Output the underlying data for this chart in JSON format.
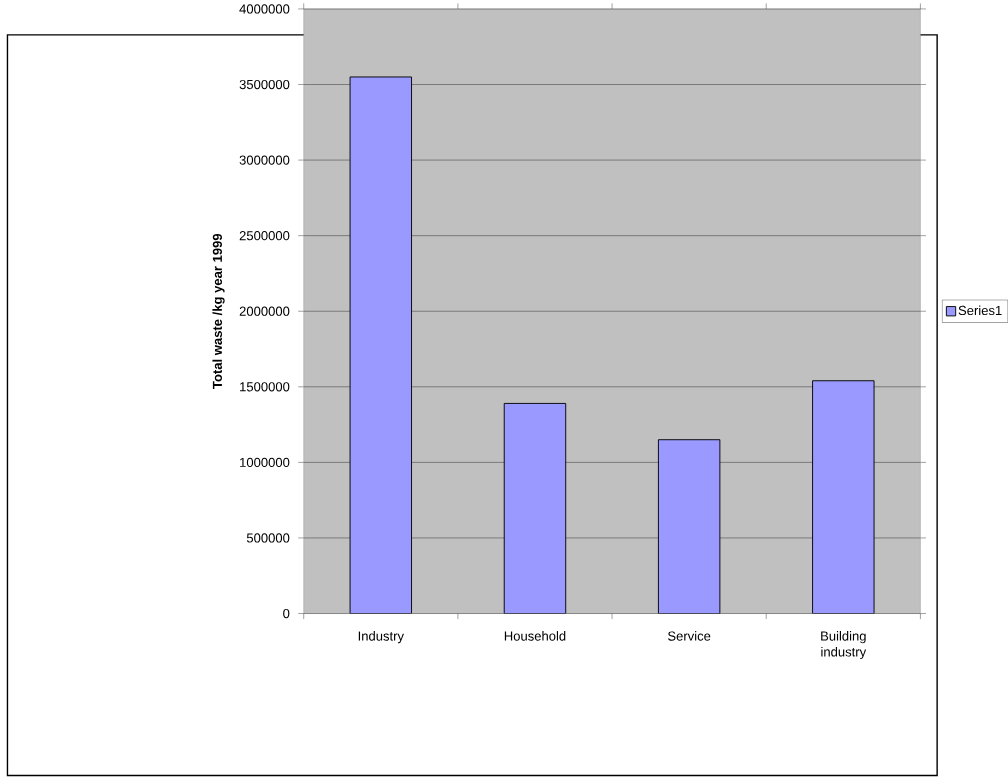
{
  "chart_data": {
    "type": "bar",
    "ylabel": "Total waste /kg year 1999",
    "categories": [
      "Industry",
      "Household",
      "Service",
      "Building industry"
    ],
    "series": [
      {
        "name": "Series1",
        "color": "#9999ff",
        "values": [
          3550000,
          1390000,
          1150000,
          1540000
        ]
      }
    ],
    "ylim": [
      0,
      4000000
    ],
    "yticks": [
      0,
      500000,
      1000000,
      1500000,
      2000000,
      2500000,
      3000000,
      3500000,
      4000000
    ],
    "grid": "y",
    "legend": "right"
  }
}
